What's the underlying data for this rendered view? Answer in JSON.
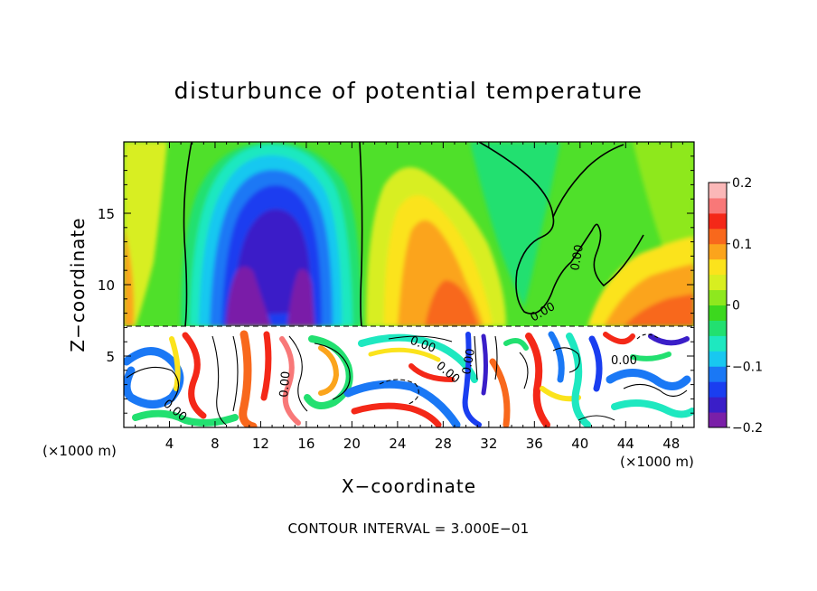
{
  "chart_data": {
    "type": "heatmap",
    "title": "disturbunce of potential temperature",
    "xlabel": "X−coordinate",
    "ylabel": "Z−coordinate",
    "x_unit_label": "(×1000 m)",
    "x_unit_label_right": "(×1000 m)",
    "annotation": "CONTOUR INTERVAL = 3.000E−01",
    "xlim": [
      0,
      50
    ],
    "ylim": [
      0,
      20
    ],
    "x_ticks": [
      "4",
      "8",
      "12",
      "16",
      "20",
      "24",
      "28",
      "32",
      "36",
      "40",
      "44",
      "48"
    ],
    "y_ticks": [
      "5",
      "10",
      "15"
    ],
    "colorbar": {
      "range": [
        -0.2,
        0.2
      ],
      "tick_labels": [
        "0.2",
        "0.1",
        "0",
        "−0.1",
        "−0.2"
      ],
      "colors": [
        "#7a1fa8",
        "#3a1ec8",
        "#1a3ef0",
        "#1a78f5",
        "#18c8f0",
        "#1ee8c0",
        "#22e070",
        "#3cd81e",
        "#8ee81e",
        "#d8ee20",
        "#fbe31c",
        "#fba41c",
        "#f8681c",
        "#f42818",
        "#f87878",
        "#fbb8b8"
      ]
    },
    "contour_labels": [
      "0.00",
      "0.00",
      "0.00",
      "0.00",
      "0.00",
      "0.00",
      "0.00",
      "0.00"
    ],
    "cool_anomaly": {
      "x_center_km": 14,
      "z_range_km": [
        7.5,
        19.5
      ],
      "min_value": -0.2
    },
    "warm_anomalies": [
      {
        "x_center_km": 28,
        "z_center_km": 12,
        "max_value": 0.15
      },
      {
        "x_center_km": 45,
        "z_center_km": 9,
        "max_value": 0.15
      }
    ],
    "turbulent_layer_z_km": [
      0,
      7.2
    ]
  }
}
